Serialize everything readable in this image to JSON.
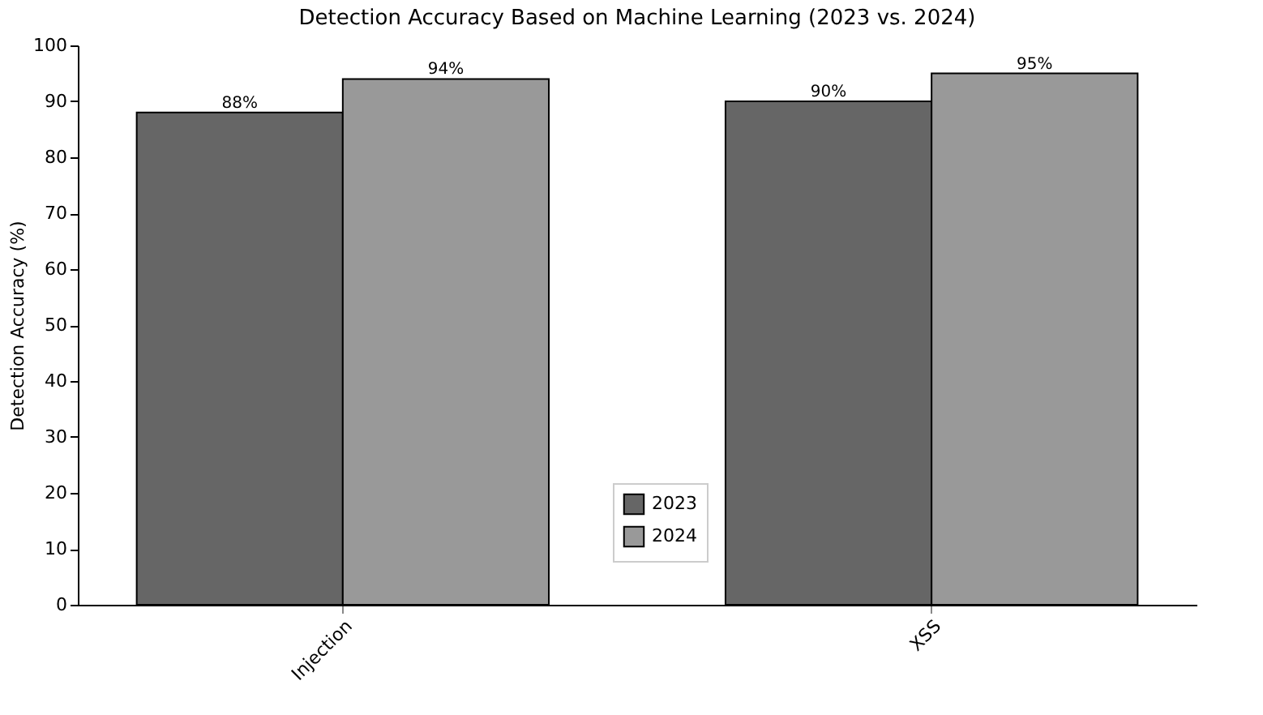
{
  "chart_data": {
    "type": "bar",
    "title": "Detection Accuracy Based on Machine Learning (2023 vs. 2024)",
    "ylabel": "Detection Accuracy (%)",
    "categories": [
      "Injection",
      "XSS"
    ],
    "series": [
      {
        "name": "2023",
        "color": "#666666",
        "values": [
          88,
          90
        ],
        "value_labels": [
          "88%",
          "90%"
        ]
      },
      {
        "name": "2024",
        "color": "#999999",
        "values": [
          94,
          95
        ],
        "value_labels": [
          "94%",
          "95%"
        ]
      }
    ],
    "ylim": [
      0,
      100
    ],
    "yticks": [
      0,
      10,
      20,
      30,
      40,
      50,
      60,
      70,
      80,
      90,
      100
    ],
    "grid": false,
    "legend": "bottom"
  }
}
